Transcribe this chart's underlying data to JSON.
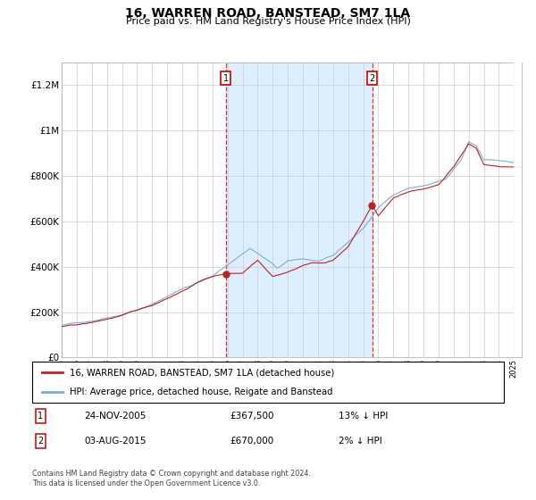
{
  "title": "16, WARREN ROAD, BANSTEAD, SM7 1LA",
  "subtitle": "Price paid vs. HM Land Registry's House Price Index (HPI)",
  "legend_line1": "16, WARREN ROAD, BANSTEAD, SM7 1LA (detached house)",
  "legend_line2": "HPI: Average price, detached house, Reigate and Banstead",
  "transaction1_date": "24-NOV-2005",
  "transaction1_price": "£367,500",
  "transaction1_hpi": "13% ↓ HPI",
  "transaction1_year": 2005.9,
  "transaction2_date": "03-AUG-2015",
  "transaction2_price": "£670,000",
  "transaction2_hpi": "2% ↓ HPI",
  "transaction2_year": 2015.6,
  "ylim": [
    0,
    1300000
  ],
  "xlim_start": 1995,
  "xlim_end": 2025.5,
  "hpi_color": "#7aaed4",
  "price_color": "#bb2222",
  "shade_color": "#ddeeff",
  "footer": "Contains HM Land Registry data © Crown copyright and database right 2024.\nThis data is licensed under the Open Government Licence v3.0.",
  "sale_prices": [
    367500,
    670000
  ]
}
